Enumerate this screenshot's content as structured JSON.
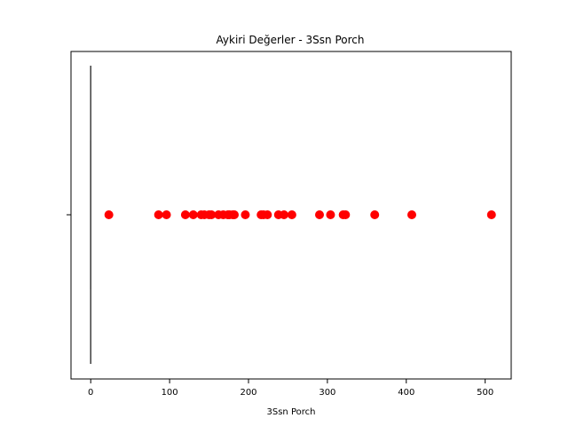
{
  "chart_data": {
    "type": "boxplot",
    "title": "Aykiri Değerler - 3Ssn Porch",
    "xlabel": "3Ssn Porch",
    "ylabel": "",
    "xlim": [
      -25,
      533
    ],
    "xticks": [
      0,
      100,
      200,
      300,
      400,
      500
    ],
    "xtick_labels": [
      "0",
      "100",
      "200",
      "300",
      "400",
      "500"
    ],
    "grid": false,
    "box": {
      "q1": 0,
      "median": 0,
      "q3": 0,
      "whisker_low": 0,
      "whisker_high": 0
    },
    "outliers": [
      23,
      86,
      96,
      120,
      130,
      140,
      144,
      150,
      153,
      162,
      168,
      174,
      176,
      180,
      182,
      196,
      216,
      219,
      224,
      238,
      245,
      255,
      290,
      304,
      320,
      323,
      360,
      407,
      508
    ],
    "colors": {
      "outlier": "#ff0000",
      "box_line": "#3f3f3f",
      "axes": "#000000"
    }
  }
}
